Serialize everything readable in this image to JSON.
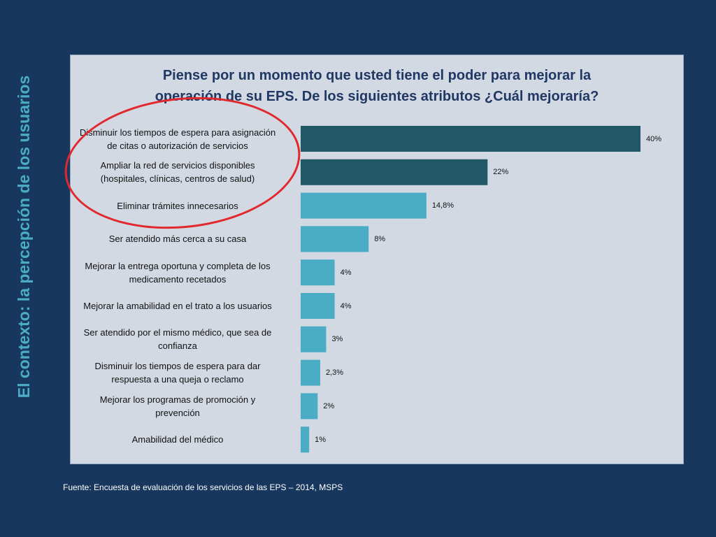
{
  "side_title": "El contexto: la percepción de los usuarios",
  "source": "Fuente: Encuesta de evaluación de los servicios de las EPS – 2014, MSPS",
  "colors": {
    "background": "#17375e",
    "panel": "#d3d9e2",
    "title": "#1f3864",
    "bar_dark": "#215868",
    "bar_light": "#4bacc6",
    "circle": "#e0282e",
    "side_title": "#4bacc6"
  },
  "chart_data": {
    "type": "bar",
    "orientation": "horizontal",
    "title_lines": [
      "Piense por un momento que usted tiene el poder para mejorar la",
      "operación de su EPS. De los siguientes atributos ¿Cuál mejoraría?"
    ],
    "categories": [
      [
        "Disminuir los tiempos de espera para asignación",
        "de citas o autorización de servicios"
      ],
      [
        "Ampliar la red de servicios disponibles",
        "(hospitales, clínicas, centros de salud)"
      ],
      [
        "Eliminar trámites innecesarios"
      ],
      [
        "Ser atendido más cerca a su casa"
      ],
      [
        "Mejorar la entrega oportuna y completa de los",
        "medicamento recetados"
      ],
      [
        "Mejorar la amabilidad en el trato a los usuarios"
      ],
      [
        "Ser atendido por el mismo médico, que sea de",
        "confianza"
      ],
      [
        "Disminuir los tiempos de espera para dar",
        "respuesta a una queja o reclamo"
      ],
      [
        "Mejorar los programas de promoción y",
        "prevención"
      ],
      [
        "Amabilidad del médico"
      ]
    ],
    "values": [
      40,
      22,
      14.8,
      8,
      4,
      4,
      3,
      2.3,
      2,
      1
    ],
    "value_labels": [
      "40%",
      "22%",
      "14,8%",
      "8%",
      "4%",
      "4%",
      "3%",
      "2,3%",
      "2%",
      "1%"
    ],
    "highlighted": [
      true,
      true,
      false,
      false,
      false,
      false,
      false,
      false,
      false,
      false
    ],
    "xlim": [
      0,
      40
    ],
    "grid": false,
    "legend": "none"
  }
}
